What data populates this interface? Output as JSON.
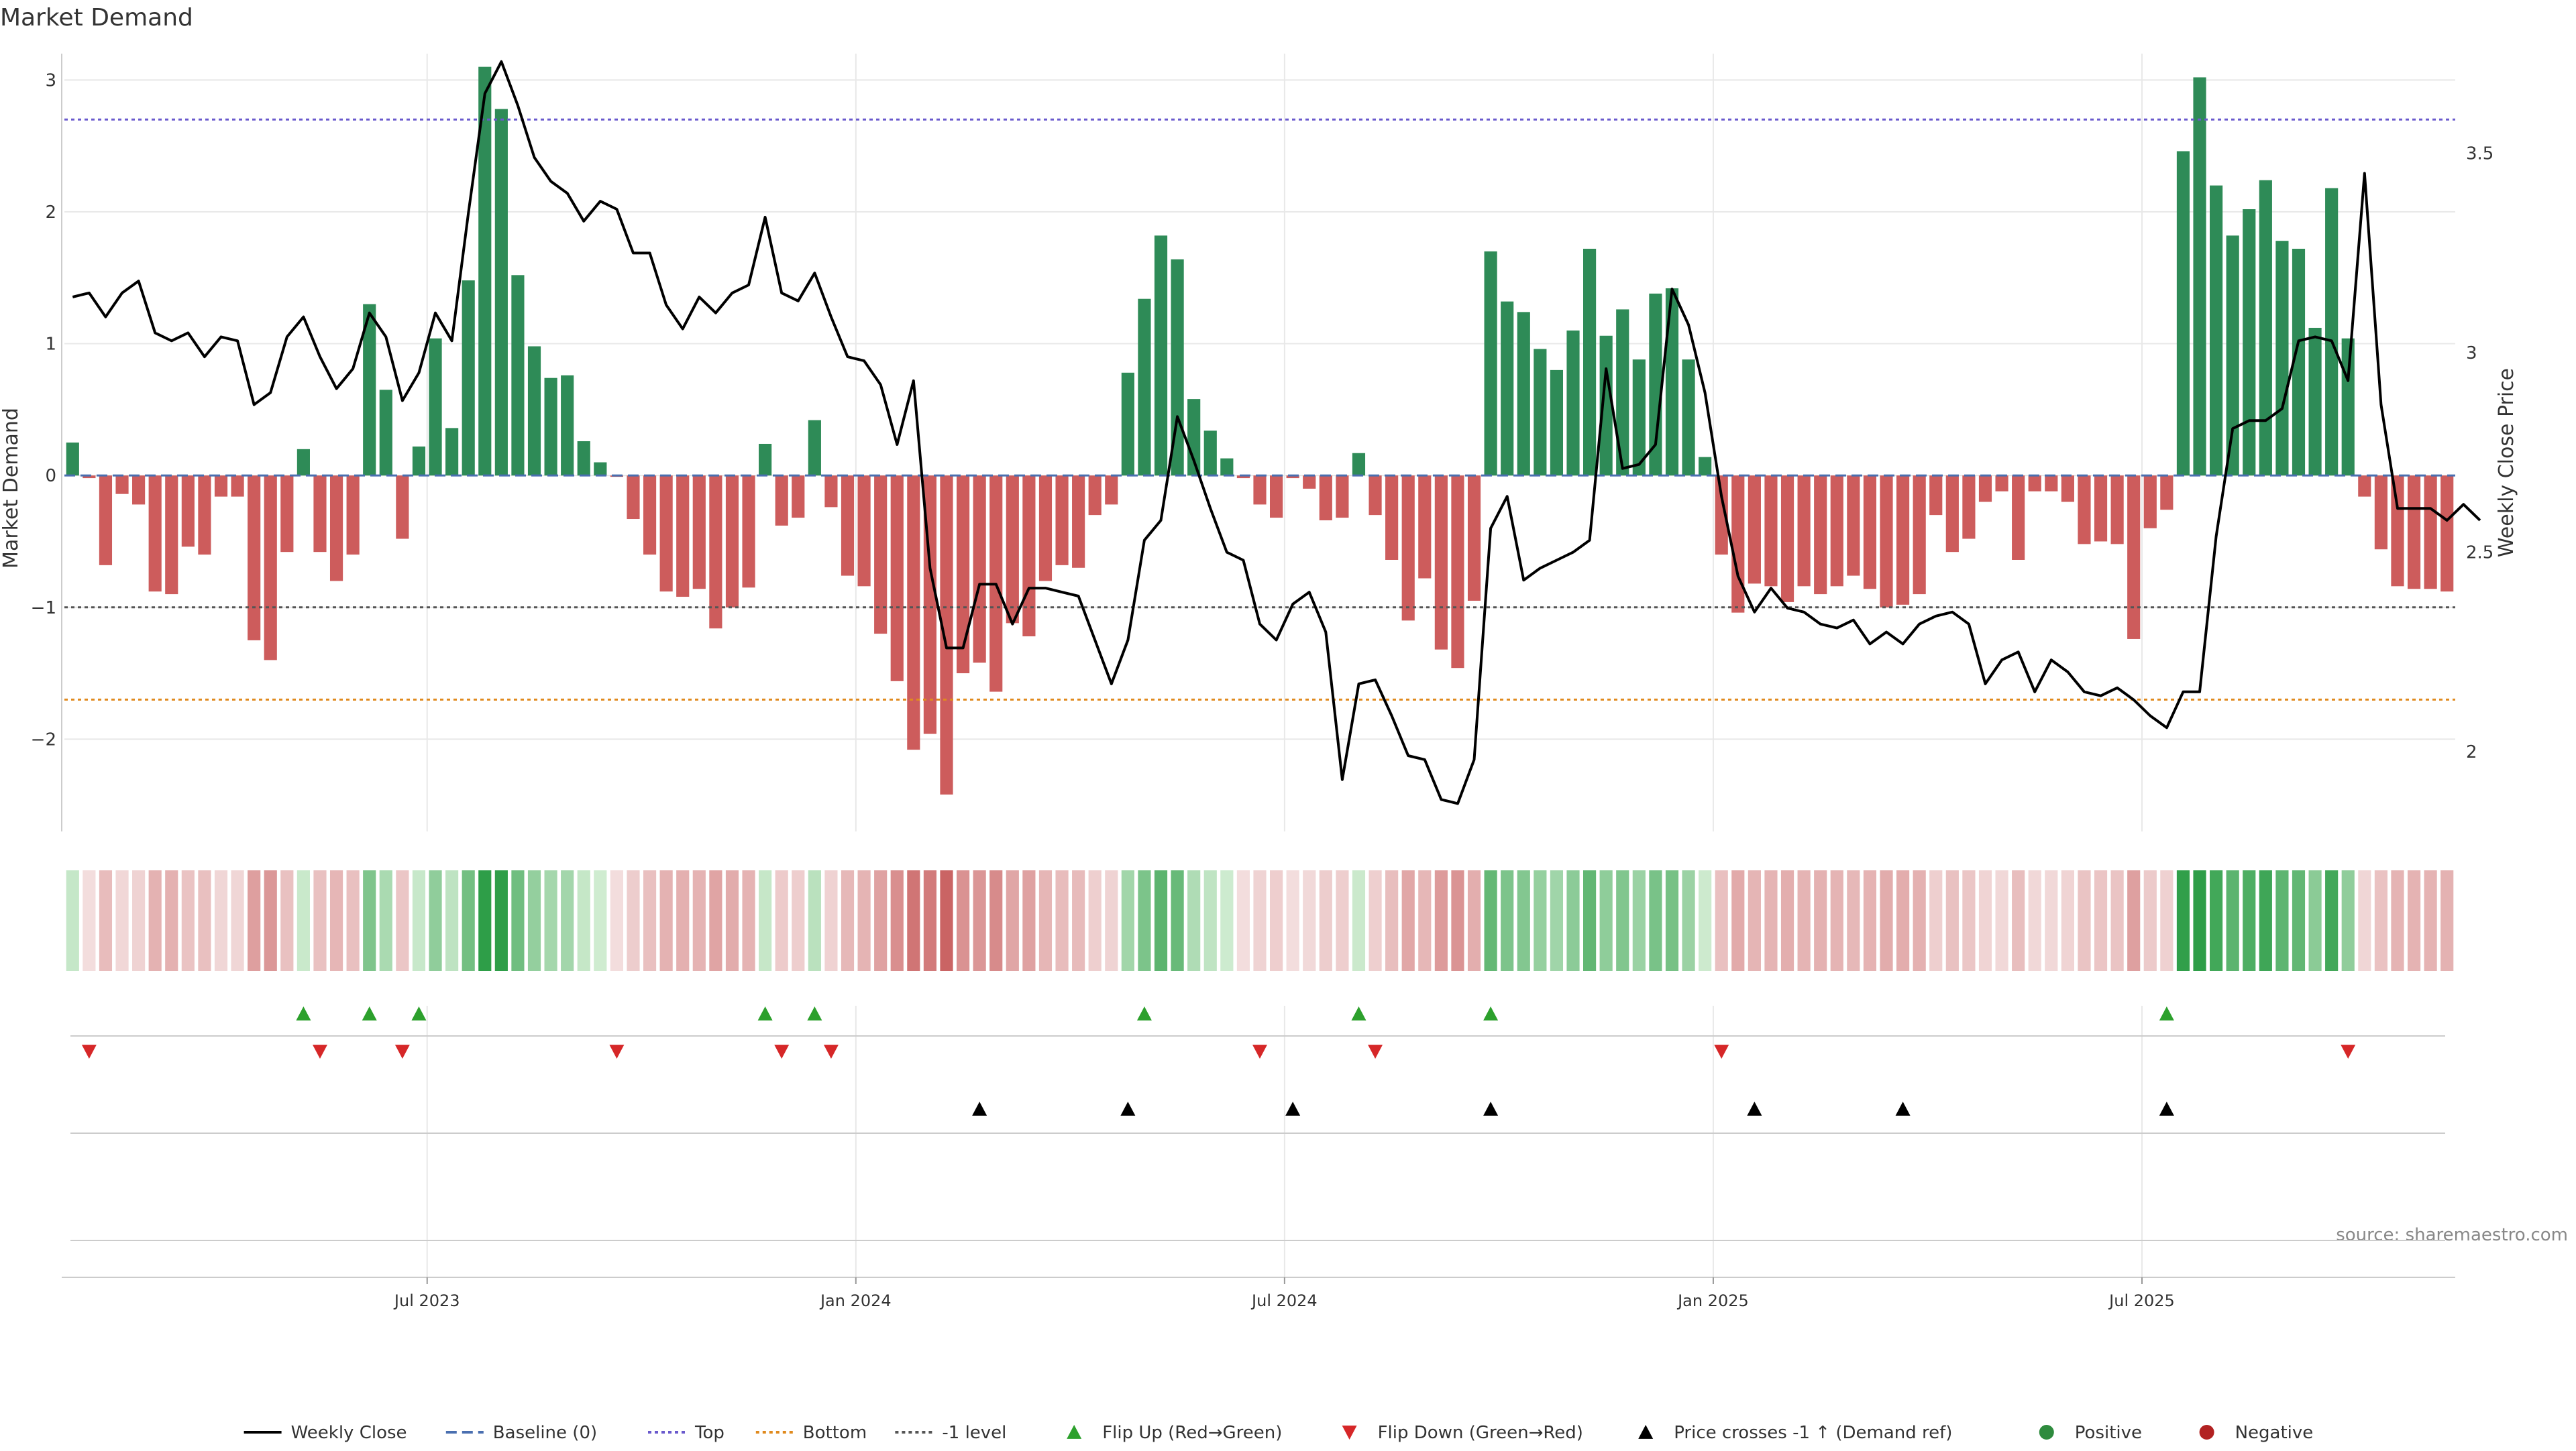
{
  "chart_data": {
    "type": "bar",
    "title": "Market Demand",
    "ylabel_left": "Market Demand",
    "ylabel_right": "Weekly Close Price",
    "ylim_left": [
      -2.7,
      3.2
    ],
    "ylim_right": [
      1.8,
      3.75
    ],
    "yticks_left": [
      3,
      2,
      1,
      0,
      -1,
      -2
    ],
    "ytick_labels_left": [
      "3",
      "2",
      "1",
      "0",
      "−1",
      "−2"
    ],
    "yticks_right": [
      3.5,
      3,
      2.5,
      2
    ],
    "ytick_labels_right": [
      "3.5",
      "3",
      "2.5",
      "2"
    ],
    "reference_lines": {
      "top": 2.7,
      "bottom": -1.7,
      "minus_one": -1,
      "baseline": 0
    },
    "x_tick_labels": [
      "Jul 2023",
      "Jan 2024",
      "Jul 2024",
      "Jan 2025",
      "Jul 2025"
    ],
    "x_tick_weeks": [
      22,
      48,
      74,
      100,
      126
    ],
    "demand_values": [
      0.25,
      -0.02,
      -0.68,
      -0.14,
      -0.22,
      -0.88,
      -0.9,
      -0.54,
      -0.6,
      -0.16,
      -0.16,
      -1.25,
      -1.4,
      -0.58,
      0.2,
      -0.58,
      -0.8,
      -0.6,
      1.3,
      0.65,
      -0.48,
      0.22,
      1.04,
      0.36,
      1.48,
      3.1,
      2.78,
      1.52,
      0.98,
      0.74,
      0.76,
      0.26,
      0.1,
      -0.01,
      -0.33,
      -0.6,
      -0.88,
      -0.92,
      -0.86,
      -1.16,
      -1.0,
      -0.85,
      0.24,
      -0.38,
      -0.32,
      0.42,
      -0.24,
      -0.76,
      -0.84,
      -1.2,
      -1.56,
      -2.08,
      -1.96,
      -2.42,
      -1.5,
      -1.42,
      -1.64,
      -1.12,
      -1.22,
      -0.8,
      -0.68,
      -0.7,
      -0.3,
      -0.22,
      0.78,
      1.34,
      1.82,
      1.64,
      0.58,
      0.34,
      0.13,
      -0.02,
      -0.22,
      -0.32,
      -0.02,
      -0.1,
      -0.34,
      -0.32,
      0.17,
      -0.3,
      -0.64,
      -1.1,
      -0.78,
      -1.32,
      -1.46,
      -0.95,
      1.7,
      1.32,
      1.24,
      0.96,
      0.8,
      1.1,
      1.72,
      1.06,
      1.26,
      0.88,
      1.38,
      1.42,
      0.88,
      0.14,
      -0.6,
      -1.04,
      -0.82,
      -0.84,
      -0.96,
      -0.84,
      -0.9,
      -0.84,
      -0.76,
      -0.86,
      -1.0,
      -0.98,
      -0.9,
      -0.3,
      -0.58,
      -0.48,
      -0.2,
      -0.12,
      -0.64,
      -0.12,
      -0.12,
      -0.2,
      -0.52,
      -0.5,
      -0.52,
      -1.24,
      -0.4,
      -0.26,
      2.46,
      3.02,
      2.2,
      1.82,
      2.02,
      2.24,
      1.78,
      1.72,
      1.12,
      2.18,
      1.04,
      -0.16,
      -0.56,
      -0.84,
      -0.86,
      -0.86,
      -0.88
    ],
    "series": [
      {
        "name": "Weekly Close",
        "values": [
          3.14,
          3.15,
          3.09,
          3.15,
          3.18,
          3.05,
          3.03,
          3.05,
          2.99,
          3.04,
          3.03,
          2.87,
          2.9,
          3.04,
          3.09,
          2.99,
          2.91,
          2.96,
          3.1,
          3.04,
          2.88,
          2.95,
          3.1,
          3.03,
          3.35,
          3.65,
          3.73,
          3.62,
          3.49,
          3.43,
          3.4,
          3.33,
          3.38,
          3.36,
          3.25,
          3.25,
          3.12,
          3.06,
          3.14,
          3.1,
          3.15,
          3.17,
          3.34,
          3.15,
          3.13,
          3.2,
          3.09,
          2.99,
          2.98,
          2.92,
          2.77,
          2.93,
          2.46,
          2.26,
          2.26,
          2.42,
          2.42,
          2.32,
          2.41,
          2.41,
          2.4,
          2.39,
          2.28,
          2.17,
          2.28,
          2.53,
          2.58,
          2.84,
          2.73,
          2.61,
          2.5,
          2.48,
          2.32,
          2.28,
          2.37,
          2.4,
          2.3,
          1.93,
          2.17,
          2.18,
          2.09,
          1.99,
          1.98,
          1.88,
          1.87,
          1.98,
          2.56,
          2.64,
          2.43,
          2.46,
          2.48,
          2.5,
          2.53,
          2.96,
          2.71,
          2.72,
          2.77,
          3.16,
          3.07,
          2.9,
          2.64,
          2.44,
          2.35,
          2.41,
          2.36,
          2.35,
          2.32,
          2.31,
          2.33,
          2.27,
          2.3,
          2.27,
          2.32,
          2.34,
          2.35,
          2.32,
          2.17,
          2.23,
          2.25,
          2.15,
          2.23,
          2.2,
          2.15,
          2.14,
          2.16,
          2.13,
          2.09,
          2.06,
          2.15,
          2.15,
          2.54,
          2.81,
          2.83,
          2.83,
          2.86,
          3.03,
          3.04,
          3.03,
          2.93,
          3.45,
          2.87,
          2.61,
          2.61,
          2.61,
          2.58,
          2.62,
          2.58
        ]
      },
      {
        "name": "Baseline (0)"
      },
      {
        "name": "Top"
      },
      {
        "name": "Bottom"
      },
      {
        "name": "-1 level"
      }
    ],
    "flip_up_weeks": [
      14,
      18,
      21,
      42,
      45,
      65,
      78,
      86,
      127
    ],
    "flip_down_weeks": [
      1,
      15,
      20,
      33,
      43,
      46,
      72,
      79,
      100,
      138
    ],
    "price_cross_weeks": [
      55,
      64,
      74,
      86,
      102,
      111,
      127
    ],
    "legend": [
      {
        "label": "Weekly Close",
        "kind": "line",
        "color": "#000000"
      },
      {
        "label": "Baseline (0)",
        "kind": "dash",
        "color": "#4a6fb0"
      },
      {
        "label": "Top",
        "kind": "dot",
        "color": "#6a5acd"
      },
      {
        "label": "Bottom",
        "kind": "dot",
        "color": "#e08a1e"
      },
      {
        "label": "-1 level",
        "kind": "dot",
        "color": "#555555"
      },
      {
        "label": "Flip Up (Red→Green)",
        "kind": "tri-up",
        "color": "#2ca02c"
      },
      {
        "label": "Flip Down (Green→Red)",
        "kind": "tri-down",
        "color": "#d62728"
      },
      {
        "label": "Price crosses -1 ↑ (Demand ref)",
        "kind": "tri-up",
        "color": "#000000"
      },
      {
        "label": "Positive",
        "kind": "circle",
        "color": "#2e8b3e"
      },
      {
        "label": "Negative",
        "kind": "circle",
        "color": "#b22222"
      }
    ],
    "legend_position": "bottom-center",
    "source": "source: sharemaestro.com"
  },
  "colors": {
    "positive_bar": "#2e8b57",
    "negative_bar": "#cd5c5c",
    "line": "#000000",
    "top_line": "#6a5acd",
    "bottom_line": "#e08a1e",
    "minus_one_line": "#555555",
    "baseline": "#4a6fb0",
    "flip_up": "#2ca02c",
    "flip_down": "#d62728",
    "cross": "#000000",
    "grid": "#e8e8e8",
    "source_text": "#888888"
  }
}
